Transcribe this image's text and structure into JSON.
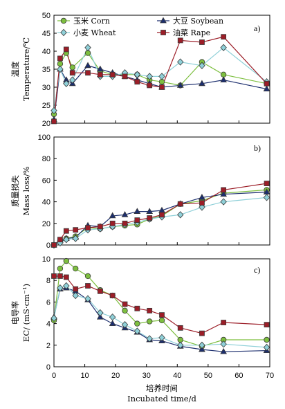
{
  "colors": {
    "corn": "#7dbf3f",
    "soybean": "#1c2e6e",
    "wheat": "#8fd0d8",
    "rape": "#9c1e28",
    "line_dark": "#3a3a3a"
  },
  "legend": [
    {
      "key": "corn",
      "label": "玉米 Corn",
      "marker": "circle"
    },
    {
      "key": "soybean",
      "label": "大豆 Soybean",
      "marker": "triangle"
    },
    {
      "key": "wheat",
      "label": "小麦 Wheat",
      "marker": "diamond"
    },
    {
      "key": "rape",
      "label": "油菜 Rape",
      "marker": "square"
    }
  ],
  "x_axis": {
    "label_cn": "培养时间",
    "label_en": "Incubated time/d",
    "range": [
      0,
      70
    ],
    "ticks": [
      0,
      10,
      20,
      30,
      40,
      50,
      60,
      70
    ]
  },
  "chart_data": [
    {
      "type": "line",
      "panel": "a)",
      "ylabel_cn": "温度",
      "ylabel_en": "Temperature/℃",
      "ylim": [
        20,
        50
      ],
      "yticks": [
        20,
        25,
        30,
        35,
        40,
        45,
        50
      ],
      "series": [
        {
          "key": "corn",
          "name": "玉米 Corn",
          "x": [
            0,
            2,
            4,
            6,
            11,
            15,
            19,
            23,
            27,
            31,
            35,
            41,
            48,
            55,
            69
          ],
          "y": [
            22.5,
            36.5,
            39.5,
            35.5,
            39.5,
            34.5,
            33.5,
            33.5,
            33.5,
            32,
            31.5,
            30.5,
            37,
            33.5,
            31
          ]
        },
        {
          "key": "soybean",
          "name": "大豆 Soybean",
          "x": [
            0,
            2,
            4,
            6,
            11,
            15,
            19,
            23,
            27,
            31,
            35,
            41,
            48,
            55,
            69
          ],
          "y": [
            21,
            35,
            32,
            31,
            36,
            35,
            34,
            33,
            32,
            31,
            30,
            30.5,
            31,
            32,
            29.5
          ]
        },
        {
          "key": "wheat",
          "name": "小麦 Wheat",
          "x": [
            0,
            2,
            4,
            6,
            11,
            15,
            19,
            23,
            27,
            31,
            35,
            41,
            48,
            55,
            69
          ],
          "y": [
            23.5,
            35,
            31,
            32,
            41,
            33,
            33,
            34,
            33.5,
            33,
            33,
            37,
            36,
            41,
            31.5
          ]
        },
        {
          "key": "rape",
          "name": "油菜 Rape",
          "x": [
            0,
            2,
            4,
            6,
            11,
            15,
            19,
            23,
            27,
            31,
            35,
            41,
            48,
            55,
            69
          ],
          "y": [
            20.5,
            38,
            40.5,
            34,
            34,
            33.5,
            33.5,
            33,
            31.5,
            30.5,
            30,
            43,
            42.5,
            44,
            31
          ]
        }
      ]
    },
    {
      "type": "line",
      "panel": "b)",
      "ylabel_cn": "质量损失",
      "ylabel_en": "Mass loss/%",
      "ylim": [
        0,
        100
      ],
      "yticks": [
        0,
        20,
        40,
        60,
        80,
        100
      ],
      "series": [
        {
          "key": "corn",
          "name": "玉米 Corn",
          "x": [
            0,
            2,
            4,
            7,
            11,
            15,
            19,
            23,
            27,
            31,
            35,
            41,
            48,
            55,
            69
          ],
          "y": [
            0,
            4,
            6,
            8,
            16,
            15,
            17,
            18,
            19,
            24,
            27,
            38,
            41,
            48,
            51
          ]
        },
        {
          "key": "soybean",
          "name": "大豆 Soybean",
          "x": [
            0,
            2,
            4,
            7,
            11,
            15,
            19,
            23,
            27,
            31,
            35,
            41,
            48,
            55,
            69
          ],
          "y": [
            0,
            4,
            6,
            7,
            18,
            17,
            27,
            28,
            31,
            31,
            32,
            38,
            44,
            47,
            49
          ]
        },
        {
          "key": "wheat",
          "name": "小麦 Wheat",
          "x": [
            0,
            2,
            4,
            7,
            11,
            15,
            19,
            23,
            27,
            31,
            35,
            41,
            48,
            55,
            69
          ],
          "y": [
            0,
            2,
            5,
            6,
            14,
            15,
            17,
            19,
            21,
            24,
            26,
            28,
            35,
            40,
            44
          ]
        },
        {
          "key": "rape",
          "name": "油菜 Rape",
          "x": [
            0,
            2,
            4,
            7,
            11,
            15,
            19,
            23,
            27,
            31,
            35,
            41,
            48,
            55,
            69
          ],
          "y": [
            0,
            5,
            13,
            14,
            16,
            17,
            20,
            20,
            23,
            25,
            28,
            38,
            39,
            51,
            57
          ]
        }
      ]
    },
    {
      "type": "line",
      "panel": "c)",
      "ylabel_cn": "电导率",
      "ylabel_en": "EC/ (mS·cm⁻¹)",
      "ylim": [
        0,
        10
      ],
      "yticks": [
        0,
        2,
        4,
        6,
        8,
        10
      ],
      "series": [
        {
          "key": "corn",
          "name": "玉米 Corn",
          "x": [
            0,
            2,
            4,
            7,
            11,
            15,
            19,
            23,
            27,
            31,
            35,
            41,
            48,
            55,
            69
          ],
          "y": [
            4.3,
            9.1,
            9.8,
            9.1,
            8.4,
            7.1,
            6.6,
            5.2,
            4.0,
            4.2,
            4.3,
            2.5,
            1.9,
            2.5,
            2.5
          ]
        },
        {
          "key": "soybean",
          "name": "大豆 Soybean",
          "x": [
            0,
            2,
            4,
            7,
            11,
            15,
            19,
            23,
            27,
            31,
            35,
            41,
            48,
            55,
            69
          ],
          "y": [
            4.6,
            7.2,
            7.3,
            7.0,
            6.2,
            4.6,
            4.0,
            3.6,
            3.2,
            2.5,
            2.4,
            1.9,
            1.6,
            1.4,
            1.5
          ]
        },
        {
          "key": "wheat",
          "name": "小麦 Wheat",
          "x": [
            0,
            2,
            4,
            7,
            11,
            15,
            19,
            23,
            27,
            31,
            35,
            41,
            48,
            55,
            69
          ],
          "y": [
            4.5,
            7.3,
            7.5,
            6.6,
            6.3,
            5.0,
            4.6,
            3.9,
            3.3,
            2.6,
            2.7,
            2.0,
            2.0,
            2.1,
            1.8
          ]
        },
        {
          "key": "rape",
          "name": "油菜 Rape",
          "x": [
            0,
            2,
            4,
            7,
            11,
            15,
            19,
            23,
            27,
            31,
            35,
            41,
            48,
            55,
            69
          ],
          "y": [
            8.4,
            8.4,
            8.3,
            7.2,
            7.5,
            7.0,
            6.6,
            5.8,
            5.4,
            5.2,
            4.8,
            3.6,
            3.1,
            4.1,
            3.9
          ]
        }
      ]
    }
  ]
}
